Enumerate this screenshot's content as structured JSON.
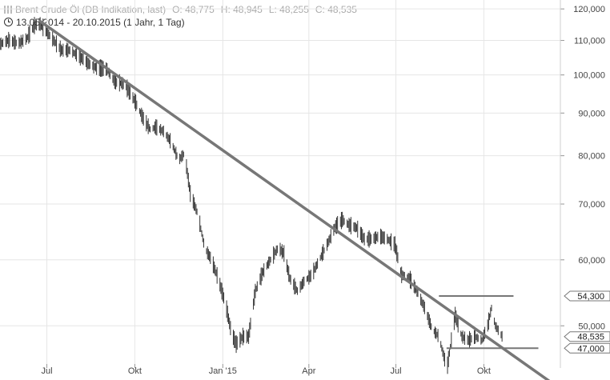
{
  "header": {
    "instrument": "Brent Crude Öl (DB Indikation, last)",
    "open": "O: 48,775",
    "high": "H: 48,945",
    "low": "L: 48,255",
    "close": "C: 48,535",
    "range": "13.05.2014 - 20.10.2015 (1 Jahr, 1 Tag)",
    "icons": [
      "bar-chart-icon",
      "clock-icon"
    ]
  },
  "chart_data": {
    "type": "line",
    "title": "Brent Crude Öl (DB Indikation, last)",
    "y_scale": "log",
    "ylim": [
      44500,
      123000
    ],
    "xlim": [
      "2014-05-13",
      "2015-12-20"
    ],
    "grid": true,
    "y_ticks": [
      {
        "value": 50000,
        "label": "50,000"
      },
      {
        "value": 60000,
        "label": "60,000"
      },
      {
        "value": 70000,
        "label": "70,000"
      },
      {
        "value": 80000,
        "label": "80,000"
      },
      {
        "value": 90000,
        "label": "90,000"
      },
      {
        "value": 100000,
        "label": "100,000"
      },
      {
        "value": 110000,
        "label": "110,000"
      },
      {
        "value": 120000,
        "label": "120,000"
      }
    ],
    "x_ticks": [
      {
        "date": "2014-07-01",
        "label": "Jul"
      },
      {
        "date": "2014-10-01",
        "label": "Okt"
      },
      {
        "date": "2015-01-01",
        "label": "Jan '15"
      },
      {
        "date": "2015-04-01",
        "label": "Apr"
      },
      {
        "date": "2015-07-01",
        "label": "Jul"
      },
      {
        "date": "2015-10-01",
        "label": "Okt"
      }
    ],
    "series": [
      {
        "values": [
          [
            "2014-05-13",
            108800
          ],
          [
            "2014-05-22",
            110000
          ],
          [
            "2014-06-01",
            109000
          ],
          [
            "2014-06-10",
            110500
          ],
          [
            "2014-06-18",
            114500
          ],
          [
            "2014-06-24",
            115000
          ],
          [
            "2014-07-01",
            112500
          ],
          [
            "2014-07-08",
            110000
          ],
          [
            "2014-07-16",
            107000
          ],
          [
            "2014-07-25",
            107000
          ],
          [
            "2014-08-05",
            105000
          ],
          [
            "2014-08-14",
            103000
          ],
          [
            "2014-08-22",
            102000
          ],
          [
            "2014-09-02",
            101500
          ],
          [
            "2014-09-10",
            98000
          ],
          [
            "2014-09-20",
            97500
          ],
          [
            "2014-10-01",
            93000
          ],
          [
            "2014-10-10",
            88500
          ],
          [
            "2014-10-17",
            86000
          ],
          [
            "2014-10-23",
            86500
          ],
          [
            "2014-10-31",
            85500
          ],
          [
            "2014-11-08",
            83000
          ],
          [
            "2014-11-16",
            79000
          ],
          [
            "2014-11-22",
            80500
          ],
          [
            "2014-11-28",
            72000
          ],
          [
            "2014-12-06",
            68000
          ],
          [
            "2014-12-13",
            62000
          ],
          [
            "2014-12-20",
            60000
          ],
          [
            "2014-12-27",
            57000
          ],
          [
            "2015-01-04",
            53000
          ],
          [
            "2015-01-10",
            49000
          ],
          [
            "2015-01-15",
            47500
          ],
          [
            "2015-01-22",
            48500
          ],
          [
            "2015-01-28",
            48500
          ],
          [
            "2015-02-04",
            55000
          ],
          [
            "2015-02-12",
            58000
          ],
          [
            "2015-02-20",
            60000
          ],
          [
            "2015-02-28",
            62000
          ],
          [
            "2015-03-06",
            61000
          ],
          [
            "2015-03-12",
            57000
          ],
          [
            "2015-03-20",
            55000
          ],
          [
            "2015-03-27",
            56500
          ],
          [
            "2015-04-04",
            57500
          ],
          [
            "2015-04-12",
            60000
          ],
          [
            "2015-04-20",
            62500
          ],
          [
            "2015-04-28",
            65500
          ],
          [
            "2015-05-06",
            67000
          ],
          [
            "2015-05-13",
            66000
          ],
          [
            "2015-05-21",
            65500
          ],
          [
            "2015-05-29",
            63500
          ],
          [
            "2015-06-06",
            63500
          ],
          [
            "2015-06-14",
            64000
          ],
          [
            "2015-06-22",
            63500
          ],
          [
            "2015-06-30",
            62500
          ],
          [
            "2015-07-07",
            57500
          ],
          [
            "2015-07-15",
            57000
          ],
          [
            "2015-07-23",
            55000
          ],
          [
            "2015-07-31",
            52500
          ],
          [
            "2015-08-08",
            49500
          ],
          [
            "2015-08-15",
            48500
          ],
          [
            "2015-08-21",
            45500
          ],
          [
            "2015-08-24",
            44800
          ],
          [
            "2015-08-28",
            48000
          ],
          [
            "2015-09-01",
            51500
          ],
          [
            "2015-09-08",
            48500
          ],
          [
            "2015-09-15",
            48000
          ],
          [
            "2015-09-22",
            48500
          ],
          [
            "2015-09-29",
            48000
          ],
          [
            "2015-10-05",
            50000
          ],
          [
            "2015-10-09",
            52500
          ],
          [
            "2015-10-13",
            50000
          ],
          [
            "2015-10-20",
            48535
          ]
        ]
      }
    ],
    "trendlines": [
      {
        "from": [
          "2014-06-24",
          116000
        ],
        "to": [
          "2015-12-20",
          42000
        ]
      }
    ],
    "levels": [
      {
        "value": 54300,
        "label": "54,300",
        "from": "2015-08-15",
        "to": "2015-11-01"
      },
      {
        "value": 47000,
        "label": "47,000",
        "from": "2015-08-23",
        "to": "2015-11-27"
      }
    ],
    "last_value": {
      "value": 48535,
      "label": "48,535"
    }
  }
}
